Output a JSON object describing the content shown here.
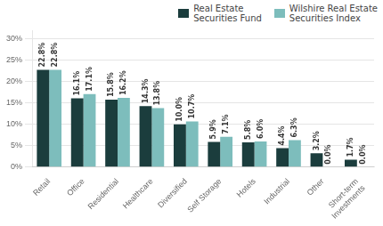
{
  "chart_data": {
    "type": "bar",
    "categories": [
      "Retail",
      "Office",
      "Residential",
      "Healthcare",
      "Diversified",
      "Self Storage",
      "Hotels",
      "Industrial",
      "Other",
      "Short-term\nInvestments"
    ],
    "series": [
      {
        "name": "Real Estate\nSecurities Fund",
        "color": "#1b3d3d",
        "values": [
          22.8,
          16.1,
          15.8,
          14.3,
          10.0,
          5.9,
          5.8,
          4.4,
          3.2,
          1.7
        ],
        "value_labels": [
          "22.8%",
          "16.1%",
          "15.8%",
          "14.3%",
          "10.0%",
          "5.9%",
          "5.8%",
          "4.4%",
          "3.2%",
          "1.7%"
        ]
      },
      {
        "name": "Wilshire Real Estate\nSecurities Index",
        "color": "#7dbdbc",
        "values": [
          22.8,
          17.1,
          16.2,
          13.8,
          10.7,
          7.1,
          6.0,
          6.3,
          0.0,
          0.0
        ],
        "value_labels": [
          "22.8%",
          "17.1%",
          "16.2%",
          "13.8%",
          "10.7%",
          "7.1%",
          "6.0%",
          "6.3%",
          "0.0%",
          "0.0%"
        ]
      }
    ],
    "ylim": [
      0,
      32
    ],
    "yticks": [
      {
        "value": 0,
        "label": "0%"
      },
      {
        "value": 5,
        "label": "5%"
      },
      {
        "value": 10,
        "label": "10%"
      },
      {
        "value": 15,
        "label": "15%"
      },
      {
        "value": 20,
        "label": "20%"
      },
      {
        "value": 25,
        "label": "25%"
      },
      {
        "value": 30,
        "label": "30%"
      }
    ],
    "grid": true,
    "legend": "upper right",
    "data_labels": true
  }
}
